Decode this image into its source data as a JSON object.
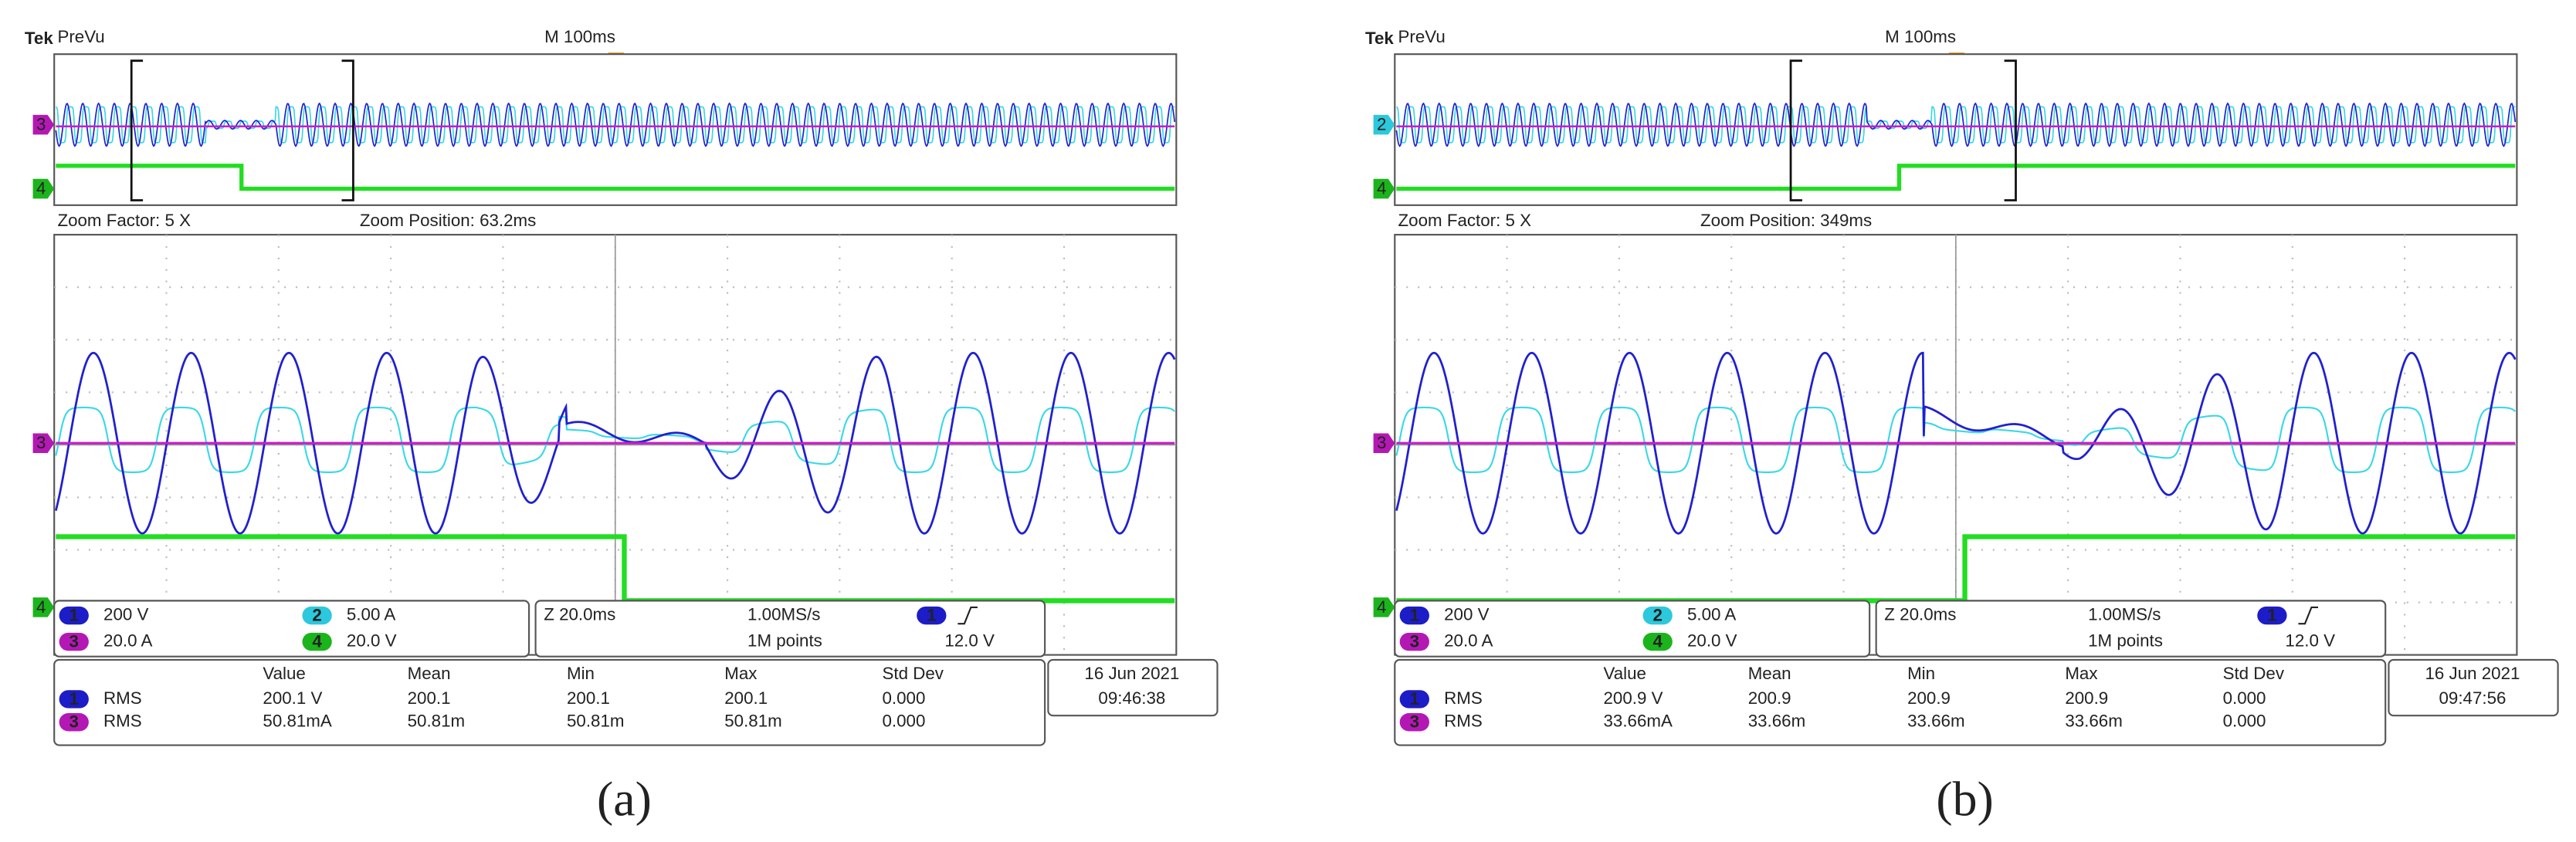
{
  "panels": [
    {
      "brand": "Tek",
      "mode": "PreVu",
      "timebase": "M 100ms",
      "overview_markers": [
        "3",
        "4"
      ],
      "zoom_factor": "Zoom Factor: 5 X",
      "zoom_position": "Zoom Position: 63.2ms",
      "zoom_markers": [
        "3",
        "4"
      ],
      "channels": [
        {
          "badge": "1",
          "scale": "200 V"
        },
        {
          "badge": "2",
          "scale": "5.00 A"
        },
        {
          "badge": "3",
          "scale": "20.0 A"
        },
        {
          "badge": "4",
          "scale": "20.0 V"
        }
      ],
      "zoom_scale": "Z 20.0ms",
      "sample_rate": "1.00MS/s",
      "record_length": "1M points",
      "trigger_source": "1",
      "trigger_level": "12.0 V",
      "measurements": {
        "headers": [
          "Value",
          "Mean",
          "Min",
          "Max",
          "Std Dev"
        ],
        "rows": [
          {
            "badge": "1",
            "label": "RMS",
            "cells": [
              "200.1 V",
              "200.1",
              "200.1",
              "200.1",
              "0.000"
            ]
          },
          {
            "badge": "3",
            "label": "RMS",
            "cells": [
              "50.81mA",
              "50.81m",
              "50.81m",
              "50.81m",
              "0.000"
            ]
          }
        ]
      },
      "date": "16 Jun  2021",
      "time": "09:46:38",
      "caption": "(a)"
    },
    {
      "brand": "Tek",
      "mode": "PreVu",
      "timebase": "M 100ms",
      "overview_markers": [
        "2",
        "4"
      ],
      "zoom_factor": "Zoom Factor: 5 X",
      "zoom_position": "Zoom Position: 349ms",
      "zoom_markers": [
        "3",
        "4"
      ],
      "channels": [
        {
          "badge": "1",
          "scale": "200 V"
        },
        {
          "badge": "2",
          "scale": "5.00 A"
        },
        {
          "badge": "3",
          "scale": "20.0 A"
        },
        {
          "badge": "4",
          "scale": "20.0 V"
        }
      ],
      "zoom_scale": "Z 20.0ms",
      "sample_rate": "1.00MS/s",
      "record_length": "1M points",
      "trigger_source": "1",
      "trigger_level": "12.0 V",
      "measurements": {
        "headers": [
          "Value",
          "Mean",
          "Min",
          "Max",
          "Std Dev"
        ],
        "rows": [
          {
            "badge": "1",
            "label": "RMS",
            "cells": [
              "200.9 V",
              "200.9",
              "200.9",
              "200.9",
              "0.000"
            ]
          },
          {
            "badge": "3",
            "label": "RMS",
            "cells": [
              "33.66mA",
              "33.66m",
              "33.66m",
              "33.66m",
              "0.000"
            ]
          }
        ]
      },
      "date": "16 Jun  2021",
      "time": "09:47:56",
      "caption": "(b)"
    }
  ]
}
